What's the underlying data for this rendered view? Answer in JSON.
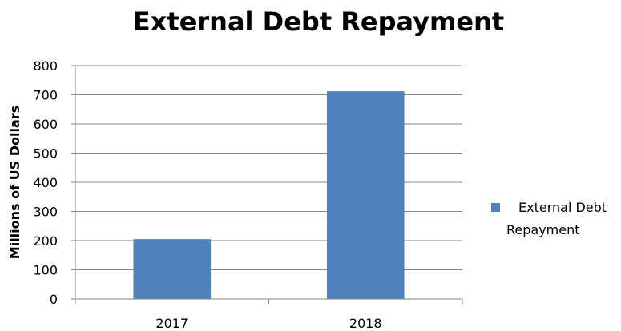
{
  "chart_data": {
    "type": "bar",
    "title": "External Debt Repayment",
    "xlabel": "",
    "ylabel": "Millions of US Dollars",
    "categories": [
      "2017",
      "2018"
    ],
    "series": [
      {
        "name": "External Debt Repayment",
        "values": [
          205,
          712
        ],
        "color": "#4f81bd"
      }
    ],
    "ylim": [
      0,
      800
    ],
    "yticks": [
      0,
      100,
      200,
      300,
      400,
      500,
      600,
      700,
      800
    ],
    "grid": true,
    "legend_position": "right"
  }
}
